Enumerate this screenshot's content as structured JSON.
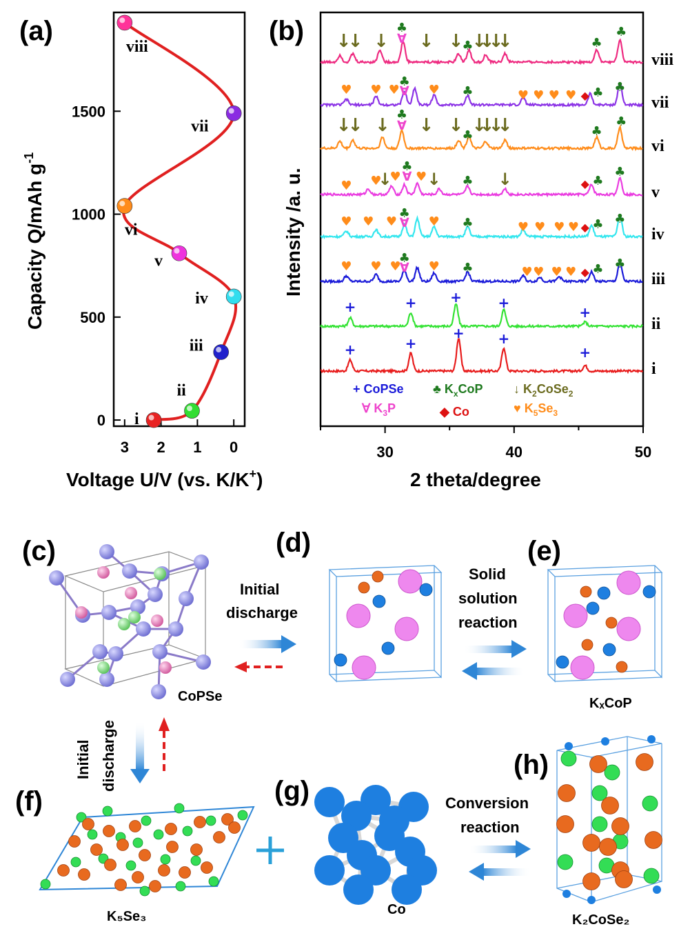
{
  "panels": {
    "a": "(a)",
    "b": "(b)",
    "c": "(c)",
    "d": "(d)",
    "e": "(e)",
    "f": "(f)",
    "g": "(g)",
    "h": "(h)"
  },
  "chart_data": [
    {
      "type": "line",
      "title": "",
      "xlabel": "Voltage U/V (vs. K/K⁺)",
      "ylabel": "Capacity Q/mAh g⁻¹",
      "xlim": [
        3.3,
        -0.3
      ],
      "ylim": [
        -30,
        1980
      ],
      "xticks": [
        3,
        2,
        1,
        0
      ],
      "yticks": [
        0,
        500,
        1000,
        1500
      ],
      "points": [
        {
          "label": "i",
          "x": 2.2,
          "y": 0,
          "color": "#e82222"
        },
        {
          "label": "ii",
          "x": 1.15,
          "y": 45,
          "color": "#33dd33"
        },
        {
          "label": "iii",
          "x": 0.35,
          "y": 330,
          "color": "#2222cc"
        },
        {
          "label": "iv",
          "x": 0.0,
          "y": 600,
          "color": "#33ddee"
        },
        {
          "label": "v",
          "x": 1.5,
          "y": 810,
          "color": "#ee33dd"
        },
        {
          "label": "vi",
          "x": 3.0,
          "y": 1040,
          "color": "#ff8c1a"
        },
        {
          "label": "vii",
          "x": 0.0,
          "y": 1490,
          "color": "#8a2be2"
        },
        {
          "label": "viii",
          "x": 3.0,
          "y": 1930,
          "color": "#ff3399"
        }
      ]
    },
    {
      "type": "line",
      "title": "",
      "xlabel": "2 theta/degree",
      "ylabel": "Intensity /a. u.",
      "xlim": [
        25,
        50
      ],
      "xticks": [
        30,
        40,
        50
      ],
      "series": [
        {
          "name": "i",
          "color": "#e81c1c",
          "offset": 0,
          "peaks": [
            [
              27.3,
              16
            ],
            [
              32.0,
              26
            ],
            [
              35.7,
              48
            ],
            [
              39.2,
              34
            ],
            [
              45.5,
              8
            ]
          ]
        },
        {
          "name": "ii",
          "color": "#33e233",
          "offset": 1,
          "peaks": [
            [
              27.3,
              12
            ],
            [
              32.0,
              20
            ],
            [
              35.5,
              32
            ],
            [
              39.2,
              24
            ],
            [
              45.5,
              6
            ]
          ]
        },
        {
          "name": "iii",
          "color": "#1a1ad9",
          "offset": 2,
          "peaks": [
            [
              27.0,
              8
            ],
            [
              29.3,
              10
            ],
            [
              31.5,
              16
            ],
            [
              32.5,
              20
            ],
            [
              33.8,
              12
            ],
            [
              36.4,
              14
            ],
            [
              40.7,
              8
            ],
            [
              42.0,
              6
            ],
            [
              43.5,
              7
            ],
            [
              46.0,
              14
            ],
            [
              48.2,
              28
            ]
          ]
        },
        {
          "name": "iv",
          "color": "#33e6ee",
          "offset": 3,
          "peaks": [
            [
              27.0,
              8
            ],
            [
              29.3,
              10
            ],
            [
              31.5,
              18
            ],
            [
              32.5,
              26
            ],
            [
              33.8,
              14
            ],
            [
              36.4,
              14
            ],
            [
              40.7,
              10
            ],
            [
              46.0,
              16
            ],
            [
              48.2,
              32
            ]
          ]
        },
        {
          "name": "v",
          "color": "#ea3ce0",
          "offset": 4,
          "peaks": [
            [
              28.7,
              8
            ],
            [
              30.5,
              12
            ],
            [
              31.5,
              14
            ],
            [
              32.5,
              16
            ],
            [
              34.2,
              8
            ],
            [
              36.4,
              12
            ],
            [
              39.3,
              8
            ],
            [
              46.0,
              14
            ],
            [
              48.2,
              24
            ]
          ]
        },
        {
          "name": "vi",
          "color": "#ff8c1a",
          "offset": 5,
          "peaks": [
            [
              26.5,
              10
            ],
            [
              27.5,
              12
            ],
            [
              29.8,
              16
            ],
            [
              31.3,
              26
            ],
            [
              35.7,
              12
            ],
            [
              36.5,
              18
            ],
            [
              37.8,
              10
            ],
            [
              39.3,
              12
            ],
            [
              46.4,
              16
            ],
            [
              48.2,
              30
            ]
          ]
        },
        {
          "name": "vii",
          "color": "#8c33e6",
          "offset": 6,
          "peaks": [
            [
              27.0,
              8
            ],
            [
              29.3,
              12
            ],
            [
              31.5,
              20
            ],
            [
              32.3,
              24
            ],
            [
              33.8,
              14
            ],
            [
              36.4,
              14
            ],
            [
              40.7,
              10
            ],
            [
              45.9,
              16
            ],
            [
              48.2,
              32
            ]
          ]
        },
        {
          "name": "viii",
          "color": "#ee2a80",
          "offset": 7,
          "peaks": [
            [
              26.5,
              10
            ],
            [
              27.5,
              12
            ],
            [
              29.6,
              18
            ],
            [
              31.4,
              30
            ],
            [
              35.7,
              12
            ],
            [
              36.5,
              18
            ],
            [
              37.8,
              10
            ],
            [
              39.3,
              12
            ],
            [
              46.4,
              18
            ],
            [
              48.2,
              32
            ]
          ]
        }
      ],
      "legend": [
        {
          "symbol": "+",
          "label": "CoPSe",
          "color": "#1a1ad9"
        },
        {
          "symbol": "♣",
          "label": "KₓCoP",
          "color": "#1f7a1f"
        },
        {
          "symbol": "↓",
          "label": "K₂CoSe₂",
          "color": "#6b6b1f"
        },
        {
          "symbol": "∀",
          "label": "K₃P",
          "color": "#ee44cc"
        },
        {
          "symbol": "♦",
          "label": "Co",
          "color": "#dd1111"
        },
        {
          "symbol": "♥",
          "label": "K₅Se₃",
          "color": "#ff8c1a"
        }
      ]
    }
  ],
  "labels_a": {
    "xlabel": "Voltage U/V (vs. K/K",
    "xsup": "+",
    "xclose": ")",
    "ylabel": "Capacity Q/mAh g",
    "ysup": "-1"
  },
  "labels_b": {
    "xlabel": "2 theta/degree",
    "ylabel": "Intensity /a. u."
  },
  "legend_text": {
    "copse": "CoPSe",
    "kxcop": "K",
    "kxcop_sub": "x",
    "kxcop_rest": "CoP",
    "k2cose2": "K",
    "k2cose2_sub1": "2",
    "k2cose2_mid": "CoSe",
    "k2cose2_sub2": "2",
    "k3p": "K",
    "k3p_sub": "3",
    "k3p_rest": "P",
    "co": "Co",
    "k5se3": "K",
    "k5se3_sub": "5",
    "k5se3_rest": "Se",
    "k5se3_sub2": "3"
  },
  "diagram": {
    "initial_discharge_1": "Initial",
    "initial_discharge_2": "discharge",
    "solid_1": "Solid",
    "solid_2": "solution",
    "solid_3": "reaction",
    "conv_1": "Conversion",
    "conv_2": "reaction",
    "vert_1": "Initial",
    "vert_2": "discharge",
    "cap_copse": "CoPSe",
    "cap_kxcop": "KₓCoP",
    "cap_k5se3": "K₅Se₃",
    "cap_co": "Co",
    "cap_k2cose2": "K₂CoSe₂"
  },
  "colors": {
    "line_a": "#e02020",
    "blue_arrow": "#3a8fd6",
    "red_dash": "#e02020",
    "pink": "#ee88ee",
    "orange": "#e86a1f",
    "blue_ball": "#1e7fe0",
    "green_ball": "#33dd55",
    "violet": "#8080e0"
  }
}
